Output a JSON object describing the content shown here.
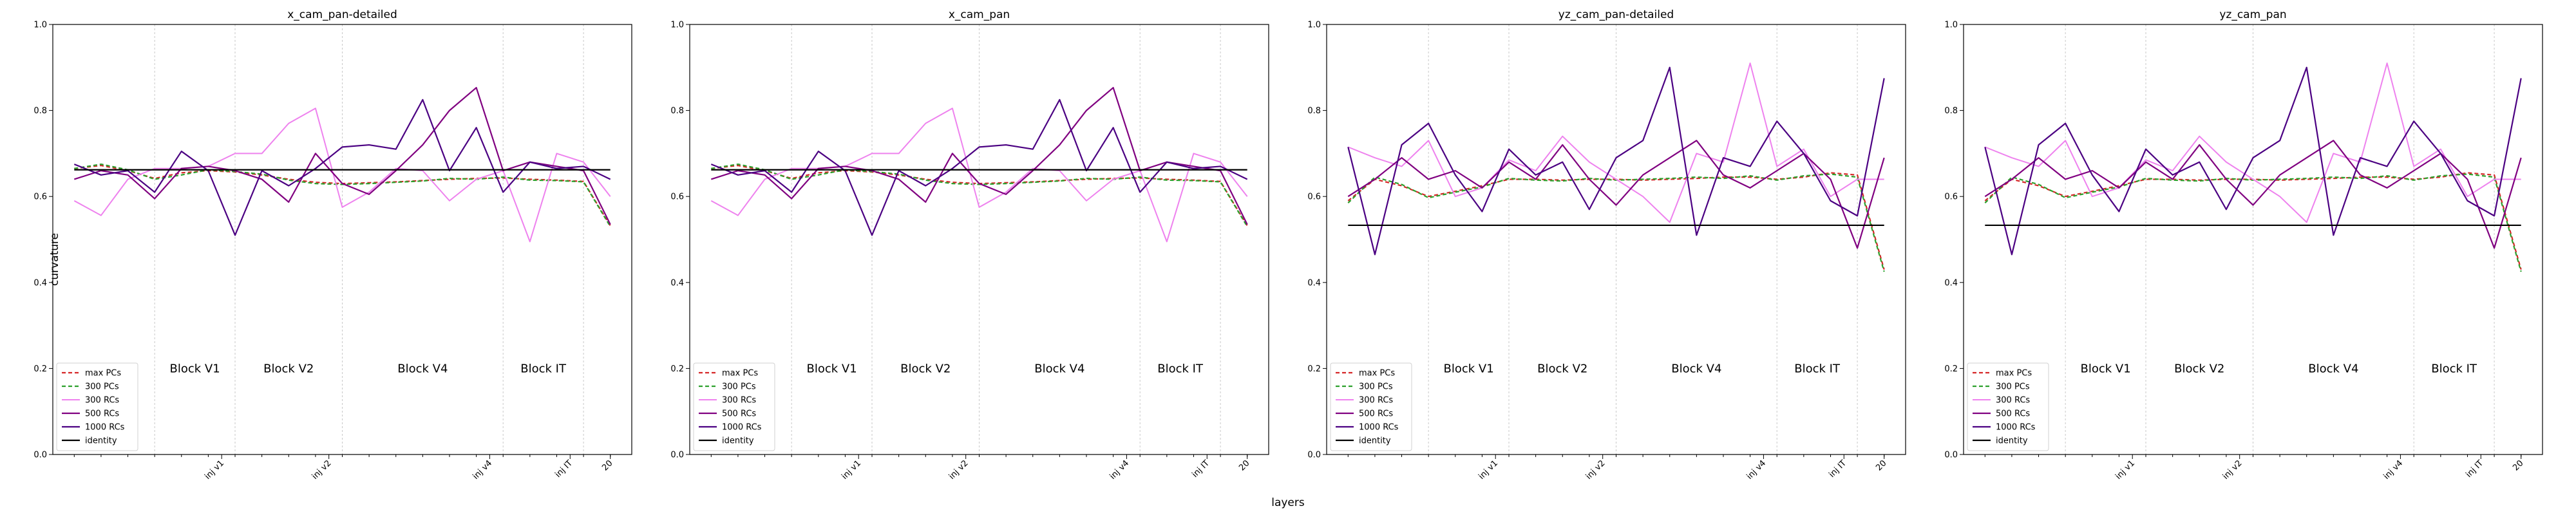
{
  "figure": {
    "xlabel": "layers",
    "ylabel": "curvature"
  },
  "chart_data": [
    {
      "type": "line",
      "title": "x_cam_pan-detailed",
      "xlabel": "",
      "ylabel": "curvature",
      "x": [
        0,
        1,
        2,
        3,
        4,
        5,
        6,
        7,
        8,
        9,
        10,
        11,
        12,
        13,
        14,
        15,
        16,
        17,
        18,
        19,
        20
      ],
      "xlim": [
        -0.8,
        20.8
      ],
      "ylim": [
        0.0,
        1.0
      ],
      "yticks": [
        0.0,
        0.2,
        0.4,
        0.6,
        0.8,
        1.0
      ],
      "xticks": [
        {
          "x": 5.5,
          "label": "inj v1"
        },
        {
          "x": 9.5,
          "label": "inj v2"
        },
        {
          "x": 15.5,
          "label": "inj v4"
        },
        {
          "x": 18.5,
          "label": "inj IT"
        },
        {
          "x": 20,
          "label": "20"
        }
      ],
      "minor_vlines": [
        3,
        6,
        10,
        16,
        19
      ],
      "blocks": [
        {
          "x": 4.5,
          "y": 0.2,
          "label": "Block V1"
        },
        {
          "x": 8,
          "y": 0.2,
          "label": "Block V2"
        },
        {
          "x": 13,
          "y": 0.2,
          "label": "Block V4"
        },
        {
          "x": 17.5,
          "y": 0.2,
          "label": "Block IT"
        }
      ],
      "legend": "lower-left",
      "series": [
        {
          "name": "max PCs",
          "color": "#d62728",
          "dash": "6,4",
          "width": 2.2,
          "values": [
            0.665,
            0.672,
            0.66,
            0.642,
            0.655,
            0.66,
            0.657,
            0.65,
            0.64,
            0.633,
            0.63,
            0.632,
            0.634,
            0.637,
            0.64,
            0.642,
            0.643,
            0.64,
            0.638,
            0.635,
            0.532
          ]
        },
        {
          "name": "300 PCs",
          "color": "#2ca02c",
          "dash": "6,4",
          "width": 2.2,
          "values": [
            0.665,
            0.675,
            0.662,
            0.64,
            0.65,
            0.662,
            0.658,
            0.652,
            0.638,
            0.63,
            0.628,
            0.63,
            0.633,
            0.636,
            0.642,
            0.64,
            0.645,
            0.638,
            0.637,
            0.634,
            0.53
          ]
        },
        {
          "name": "300 RCs",
          "color": "#ee82ee",
          "dash": "",
          "width": 2.0,
          "values": [
            0.59,
            0.556,
            0.64,
            0.665,
            0.665,
            0.67,
            0.7,
            0.7,
            0.77,
            0.805,
            0.575,
            0.61,
            0.665,
            0.66,
            0.59,
            0.64,
            0.66,
            0.495,
            0.7,
            0.68,
            0.6
          ]
        },
        {
          "name": "500 RCs",
          "color": "#800080",
          "dash": "",
          "width": 2.2,
          "values": [
            0.64,
            0.66,
            0.65,
            0.595,
            0.665,
            0.67,
            0.66,
            0.64,
            0.587,
            0.7,
            0.63,
            0.605,
            0.66,
            0.72,
            0.8,
            0.853,
            0.66,
            0.68,
            0.67,
            0.66,
            0.535
          ]
        },
        {
          "name": "1000 RCs",
          "color": "#4b0082",
          "dash": "",
          "width": 2.2,
          "values": [
            0.675,
            0.65,
            0.66,
            0.61,
            0.705,
            0.66,
            0.51,
            0.66,
            0.625,
            0.665,
            0.715,
            0.72,
            0.71,
            0.825,
            0.66,
            0.76,
            0.61,
            0.68,
            0.665,
            0.67,
            0.64
          ]
        },
        {
          "name": "identity",
          "color": "#000000",
          "dash": "",
          "width": 2.2,
          "values": [
            0.662,
            0.662,
            0.662,
            0.662,
            0.662,
            0.662,
            0.662,
            0.662,
            0.662,
            0.662,
            0.662,
            0.662,
            0.662,
            0.662,
            0.662,
            0.662,
            0.662,
            0.662,
            0.662,
            0.662,
            0.662
          ]
        }
      ]
    },
    {
      "type": "line",
      "title": "x_cam_pan",
      "xlabel": "",
      "ylabel": "",
      "x": [
        0,
        1,
        2,
        3,
        4,
        5,
        6,
        7,
        8,
        9,
        10,
        11,
        12,
        13,
        14,
        15,
        16,
        17,
        18,
        19,
        20
      ],
      "xlim": [
        -0.8,
        20.8
      ],
      "ylim": [
        0.0,
        1.0
      ],
      "yticks": [
        0.0,
        0.2,
        0.4,
        0.6,
        0.8,
        1.0
      ],
      "xticks": [
        {
          "x": 5.5,
          "label": "inj v1"
        },
        {
          "x": 9.5,
          "label": "inj v2"
        },
        {
          "x": 15.5,
          "label": "inj v4"
        },
        {
          "x": 18.5,
          "label": "inj IT"
        },
        {
          "x": 20,
          "label": "20"
        }
      ],
      "minor_vlines": [
        3,
        6,
        10,
        16,
        19
      ],
      "blocks": [
        {
          "x": 4.5,
          "y": 0.2,
          "label": "Block V1"
        },
        {
          "x": 8,
          "y": 0.2,
          "label": "Block V2"
        },
        {
          "x": 13,
          "y": 0.2,
          "label": "Block V4"
        },
        {
          "x": 17.5,
          "y": 0.2,
          "label": "Block IT"
        }
      ],
      "legend": "lower-left",
      "series": [
        {
          "name": "max PCs",
          "color": "#d62728",
          "dash": "6,4",
          "width": 2.2,
          "values": [
            0.665,
            0.672,
            0.66,
            0.642,
            0.655,
            0.66,
            0.657,
            0.65,
            0.64,
            0.633,
            0.63,
            0.632,
            0.634,
            0.637,
            0.64,
            0.642,
            0.643,
            0.64,
            0.638,
            0.635,
            0.532
          ]
        },
        {
          "name": "300 PCs",
          "color": "#2ca02c",
          "dash": "6,4",
          "width": 2.2,
          "values": [
            0.665,
            0.675,
            0.662,
            0.64,
            0.65,
            0.662,
            0.658,
            0.652,
            0.638,
            0.63,
            0.628,
            0.63,
            0.633,
            0.636,
            0.642,
            0.64,
            0.645,
            0.638,
            0.637,
            0.634,
            0.53
          ]
        },
        {
          "name": "300 RCs",
          "color": "#ee82ee",
          "dash": "",
          "width": 2.0,
          "values": [
            0.59,
            0.556,
            0.64,
            0.665,
            0.665,
            0.67,
            0.7,
            0.7,
            0.77,
            0.805,
            0.575,
            0.61,
            0.665,
            0.66,
            0.59,
            0.64,
            0.66,
            0.495,
            0.7,
            0.68,
            0.6
          ]
        },
        {
          "name": "500 RCs",
          "color": "#800080",
          "dash": "",
          "width": 2.2,
          "values": [
            0.64,
            0.66,
            0.65,
            0.595,
            0.665,
            0.67,
            0.66,
            0.64,
            0.587,
            0.7,
            0.63,
            0.605,
            0.66,
            0.72,
            0.8,
            0.853,
            0.66,
            0.68,
            0.67,
            0.66,
            0.535
          ]
        },
        {
          "name": "1000 RCs",
          "color": "#4b0082",
          "dash": "",
          "width": 2.2,
          "values": [
            0.675,
            0.65,
            0.66,
            0.61,
            0.705,
            0.66,
            0.51,
            0.66,
            0.625,
            0.665,
            0.715,
            0.72,
            0.71,
            0.825,
            0.66,
            0.76,
            0.61,
            0.68,
            0.665,
            0.67,
            0.64
          ]
        },
        {
          "name": "identity",
          "color": "#000000",
          "dash": "",
          "width": 2.2,
          "values": [
            0.662,
            0.662,
            0.662,
            0.662,
            0.662,
            0.662,
            0.662,
            0.662,
            0.662,
            0.662,
            0.662,
            0.662,
            0.662,
            0.662,
            0.662,
            0.662,
            0.662,
            0.662,
            0.662,
            0.662,
            0.662
          ]
        }
      ]
    },
    {
      "type": "line",
      "title": "yz_cam_pan-detailed",
      "xlabel": "",
      "ylabel": "",
      "x": [
        0,
        1,
        2,
        3,
        4,
        5,
        6,
        7,
        8,
        9,
        10,
        11,
        12,
        13,
        14,
        15,
        16,
        17,
        18,
        19,
        20
      ],
      "xlim": [
        -0.8,
        20.8
      ],
      "ylim": [
        0.0,
        1.0
      ],
      "yticks": [
        0.0,
        0.2,
        0.4,
        0.6,
        0.8,
        1.0
      ],
      "xticks": [
        {
          "x": 5.5,
          "label": "inj v1"
        },
        {
          "x": 9.5,
          "label": "inj v2"
        },
        {
          "x": 15.5,
          "label": "inj v4"
        },
        {
          "x": 18.5,
          "label": "inj IT"
        },
        {
          "x": 20,
          "label": "20"
        }
      ],
      "minor_vlines": [
        3,
        6,
        10,
        16,
        19
      ],
      "blocks": [
        {
          "x": 4.5,
          "y": 0.2,
          "label": "Block V1"
        },
        {
          "x": 8,
          "y": 0.2,
          "label": "Block V2"
        },
        {
          "x": 13,
          "y": 0.2,
          "label": "Block V4"
        },
        {
          "x": 17.5,
          "y": 0.2,
          "label": "Block IT"
        }
      ],
      "legend": "lower-left",
      "series": [
        {
          "name": "max PCs",
          "color": "#d62728",
          "dash": "6,4",
          "width": 2.2,
          "values": [
            0.59,
            0.64,
            0.625,
            0.6,
            0.612,
            0.625,
            0.64,
            0.64,
            0.638,
            0.64,
            0.64,
            0.638,
            0.64,
            0.642,
            0.645,
            0.645,
            0.64,
            0.645,
            0.655,
            0.65,
            0.43
          ]
        },
        {
          "name": "300 PCs",
          "color": "#2ca02c",
          "dash": "6,4",
          "width": 2.2,
          "values": [
            0.585,
            0.645,
            0.628,
            0.597,
            0.61,
            0.622,
            0.642,
            0.638,
            0.636,
            0.642,
            0.638,
            0.64,
            0.642,
            0.645,
            0.642,
            0.648,
            0.638,
            0.648,
            0.652,
            0.645,
            0.425
          ]
        },
        {
          "name": "300 RCs",
          "color": "#ee82ee",
          "dash": "",
          "width": 2.0,
          "values": [
            0.715,
            0.69,
            0.67,
            0.73,
            0.6,
            0.62,
            0.685,
            0.66,
            0.74,
            0.68,
            0.64,
            0.6,
            0.54,
            0.7,
            0.68,
            0.91,
            0.67,
            0.71,
            0.6,
            0.64,
            0.64
          ]
        },
        {
          "name": "500 RCs",
          "color": "#800080",
          "dash": "",
          "width": 2.2,
          "values": [
            0.6,
            0.64,
            0.69,
            0.64,
            0.66,
            0.62,
            0.68,
            0.64,
            0.72,
            0.64,
            0.58,
            0.65,
            0.69,
            0.73,
            0.65,
            0.62,
            0.66,
            0.7,
            0.64,
            0.48,
            0.69
          ]
        },
        {
          "name": "1000 RCs",
          "color": "#4b0082",
          "dash": "",
          "width": 2.2,
          "values": [
            0.715,
            0.465,
            0.72,
            0.77,
            0.65,
            0.565,
            0.71,
            0.65,
            0.68,
            0.57,
            0.69,
            0.73,
            0.9,
            0.51,
            0.69,
            0.67,
            0.775,
            0.7,
            0.59,
            0.555,
            0.875
          ]
        },
        {
          "name": "identity",
          "color": "#000000",
          "dash": "",
          "width": 2.2,
          "values": [
            0.533,
            0.533,
            0.533,
            0.533,
            0.533,
            0.533,
            0.533,
            0.533,
            0.533,
            0.533,
            0.533,
            0.533,
            0.533,
            0.533,
            0.533,
            0.533,
            0.533,
            0.533,
            0.533,
            0.533,
            0.533
          ]
        }
      ]
    },
    {
      "type": "line",
      "title": "yz_cam_pan",
      "xlabel": "",
      "ylabel": "",
      "x": [
        0,
        1,
        2,
        3,
        4,
        5,
        6,
        7,
        8,
        9,
        10,
        11,
        12,
        13,
        14,
        15,
        16,
        17,
        18,
        19,
        20
      ],
      "xlim": [
        -0.8,
        20.8
      ],
      "ylim": [
        0.0,
        1.0
      ],
      "yticks": [
        0.0,
        0.2,
        0.4,
        0.6,
        0.8,
        1.0
      ],
      "xticks": [
        {
          "x": 5.5,
          "label": "inj v1"
        },
        {
          "x": 9.5,
          "label": "inj v2"
        },
        {
          "x": 15.5,
          "label": "inj v4"
        },
        {
          "x": 18.5,
          "label": "inj IT"
        },
        {
          "x": 20,
          "label": "20"
        }
      ],
      "minor_vlines": [
        3,
        6,
        10,
        16,
        19
      ],
      "blocks": [
        {
          "x": 4.5,
          "y": 0.2,
          "label": "Block V1"
        },
        {
          "x": 8,
          "y": 0.2,
          "label": "Block V2"
        },
        {
          "x": 13,
          "y": 0.2,
          "label": "Block V4"
        },
        {
          "x": 17.5,
          "y": 0.2,
          "label": "Block IT"
        }
      ],
      "legend": "lower-left",
      "series": [
        {
          "name": "max PCs",
          "color": "#d62728",
          "dash": "6,4",
          "width": 2.2,
          "values": [
            0.59,
            0.64,
            0.625,
            0.6,
            0.612,
            0.625,
            0.64,
            0.64,
            0.638,
            0.64,
            0.64,
            0.638,
            0.64,
            0.642,
            0.645,
            0.645,
            0.64,
            0.645,
            0.655,
            0.65,
            0.43
          ]
        },
        {
          "name": "300 PCs",
          "color": "#2ca02c",
          "dash": "6,4",
          "width": 2.2,
          "values": [
            0.585,
            0.645,
            0.628,
            0.597,
            0.61,
            0.622,
            0.642,
            0.638,
            0.636,
            0.642,
            0.638,
            0.64,
            0.642,
            0.645,
            0.642,
            0.648,
            0.638,
            0.648,
            0.652,
            0.645,
            0.425
          ]
        },
        {
          "name": "300 RCs",
          "color": "#ee82ee",
          "dash": "",
          "width": 2.0,
          "values": [
            0.715,
            0.69,
            0.67,
            0.73,
            0.6,
            0.62,
            0.685,
            0.66,
            0.74,
            0.68,
            0.64,
            0.6,
            0.54,
            0.7,
            0.68,
            0.91,
            0.67,
            0.71,
            0.6,
            0.64,
            0.64
          ]
        },
        {
          "name": "500 RCs",
          "color": "#800080",
          "dash": "",
          "width": 2.2,
          "values": [
            0.6,
            0.64,
            0.69,
            0.64,
            0.66,
            0.62,
            0.68,
            0.64,
            0.72,
            0.64,
            0.58,
            0.65,
            0.69,
            0.73,
            0.65,
            0.62,
            0.66,
            0.7,
            0.64,
            0.48,
            0.69
          ]
        },
        {
          "name": "1000 RCs",
          "color": "#4b0082",
          "dash": "",
          "width": 2.2,
          "values": [
            0.715,
            0.465,
            0.72,
            0.77,
            0.65,
            0.565,
            0.71,
            0.65,
            0.68,
            0.57,
            0.69,
            0.73,
            0.9,
            0.51,
            0.69,
            0.67,
            0.775,
            0.7,
            0.59,
            0.555,
            0.875
          ]
        },
        {
          "name": "identity",
          "color": "#000000",
          "dash": "",
          "width": 2.2,
          "values": [
            0.533,
            0.533,
            0.533,
            0.533,
            0.533,
            0.533,
            0.533,
            0.533,
            0.533,
            0.533,
            0.533,
            0.533,
            0.533,
            0.533,
            0.533,
            0.533,
            0.533,
            0.533,
            0.533,
            0.533,
            0.533
          ]
        }
      ]
    }
  ]
}
